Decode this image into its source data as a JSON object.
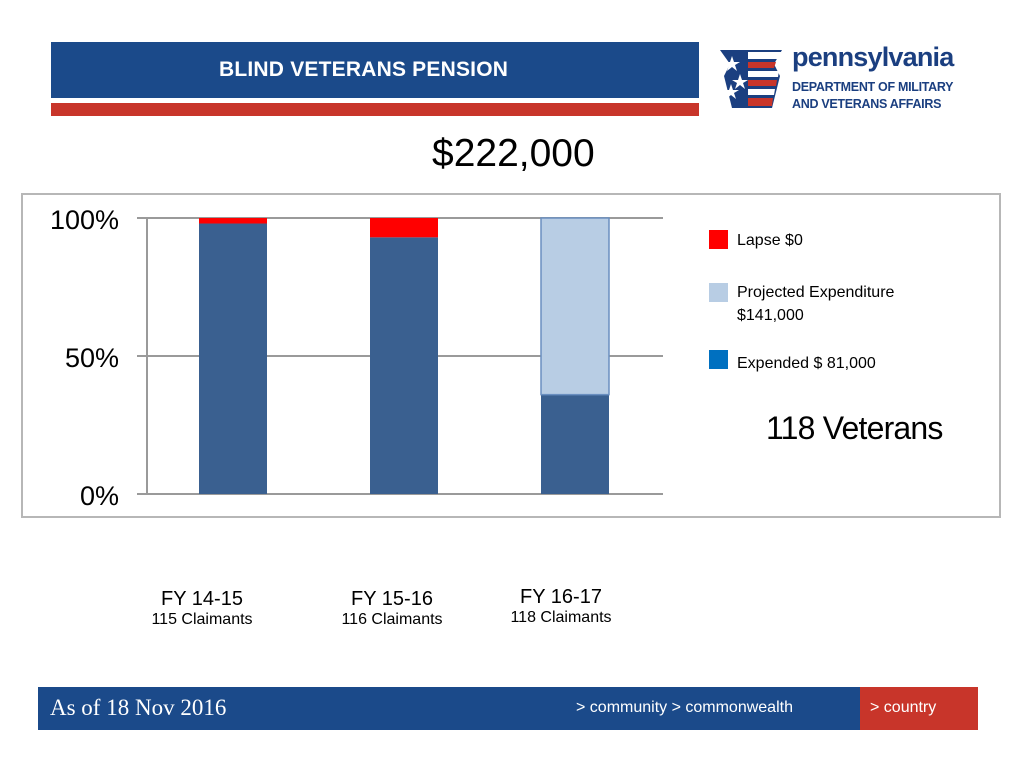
{
  "header": {
    "title": "BLIND VETERANS PENSION"
  },
  "logo": {
    "line1": "pennsylvania",
    "line2": "DEPARTMENT OF MILITARY",
    "line3": "AND VETERANS AFFAIRS"
  },
  "total_amount": "$222,000",
  "veterans_count": "118 Veterans",
  "colors": {
    "expended": "#3a6090",
    "projected": "#b8cde4",
    "lapse": "#ff0000",
    "legend_expended": "#0070c0",
    "brand_blue": "#1b4a8a",
    "brand_red": "#c8352a"
  },
  "chart_data": {
    "type": "bar",
    "stacked": true,
    "categories": [
      "FY 14-15",
      "FY 15-16",
      "FY 16-17"
    ],
    "category_subtitles": [
      "115 Claimants",
      "116 Claimants",
      "118 Claimants"
    ],
    "series": [
      {
        "name": "Expended $ 81,000",
        "values": [
          98,
          93,
          36
        ]
      },
      {
        "name": "Projected Expenditure $141,000",
        "values": [
          0,
          0,
          64
        ]
      },
      {
        "name": "Lapse $0",
        "values": [
          2,
          7,
          0
        ]
      }
    ],
    "yticks": [
      "0%",
      "50%",
      "100%"
    ],
    "ylim": [
      0,
      100
    ],
    "grid": true,
    "legend_position": "right"
  },
  "legend": {
    "lapse": "Lapse $0",
    "projected_line1": "Projected Expenditure",
    "projected_line2": "$141,000",
    "expended": "Expended $ 81,000"
  },
  "footer": {
    "date": "As of 18 Nov 2016",
    "nav": "> community > commonwealth",
    "country": "> country"
  }
}
